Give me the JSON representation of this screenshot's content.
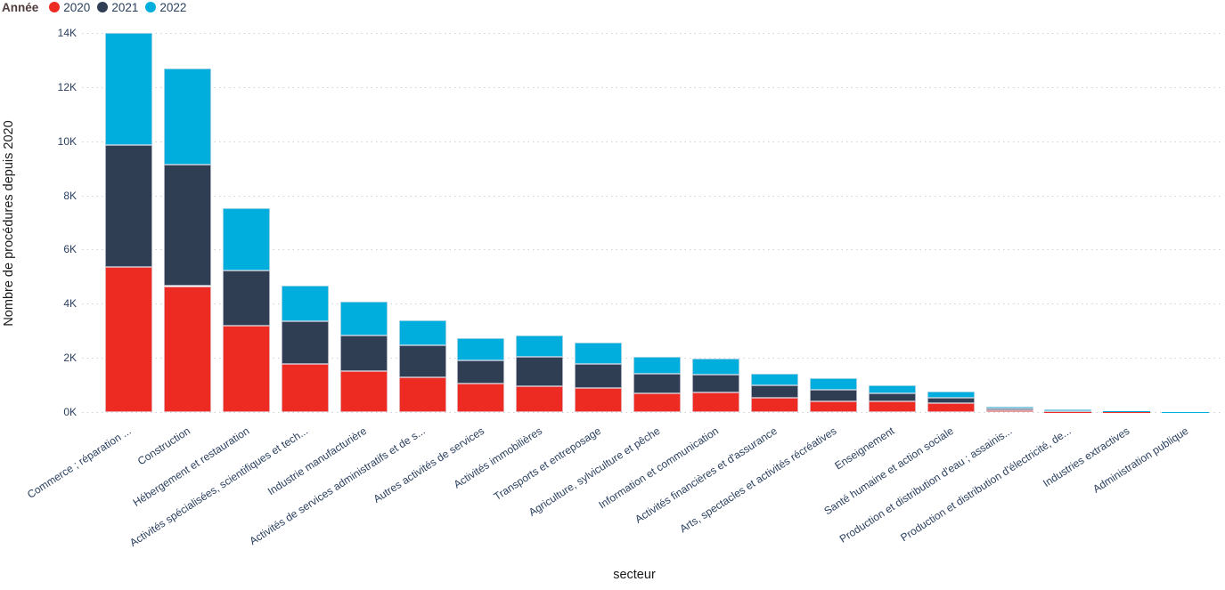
{
  "legend": {
    "title": "Année",
    "items": [
      {
        "label": "2020",
        "color": "#ee2b23"
      },
      {
        "label": "2021",
        "color": "#2f3e52"
      },
      {
        "label": "2022",
        "color": "#00aedd"
      }
    ]
  },
  "chart_data": {
    "type": "bar",
    "stacked": true,
    "title": "",
    "xlabel": "secteur",
    "ylabel": "Nombre de procédures depuis 2020",
    "ylim": [
      0,
      14000
    ],
    "ytick_step": 2000,
    "ytick_labels": [
      "0K",
      "2K",
      "4K",
      "6K",
      "8K",
      "10K",
      "12K",
      "14K"
    ],
    "grid": "horizontal-dotted",
    "legend_position": "top-left",
    "categories": [
      "Commerce ; réparation ...",
      "Construction",
      "Hébergement et restauration",
      "Activités spécialisées, scientifiques et tech...",
      "Industrie manufacturière",
      "Activités de services administratifs et de s...",
      "Autres activités de services",
      "Activités immobilières",
      "Transports et entreposage",
      "Agriculture, sylviculture et pêche",
      "Information et communication",
      "Activités financières et d'assurance",
      "Arts, spectacles et activités récréatives",
      "Enseignement",
      "Santé humaine et action sociale",
      "Production et distribution d'eau ; assainis...",
      "Production et distribution d'électricité, de...",
      "Industries extractives",
      "Administration publique"
    ],
    "series": [
      {
        "name": "2020",
        "color": "#ee2b23",
        "values": [
          5350,
          4650,
          3180,
          1760,
          1500,
          1270,
          1050,
          950,
          890,
          690,
          720,
          520,
          390,
          390,
          330,
          65,
          12,
          10,
          4
        ]
      },
      {
        "name": "2021",
        "color": "#2f3e52",
        "values": [
          4500,
          4480,
          2060,
          1580,
          1330,
          1210,
          850,
          1090,
          880,
          720,
          670,
          460,
          430,
          300,
          190,
          65,
          12,
          8,
          4
        ]
      },
      {
        "name": "2022",
        "color": "#00aedd",
        "values": [
          4150,
          3570,
          2270,
          1320,
          1260,
          920,
          820,
          770,
          790,
          620,
          570,
          430,
          430,
          290,
          230,
          65,
          62,
          10,
          5
        ]
      }
    ]
  },
  "colors": {
    "grid": "#ccd2d9",
    "tick_text": "#2a3f5f",
    "axis_title_text": "#1a1a1a",
    "legend_title_text": "#4e3b3b",
    "background": "#ffffff"
  }
}
